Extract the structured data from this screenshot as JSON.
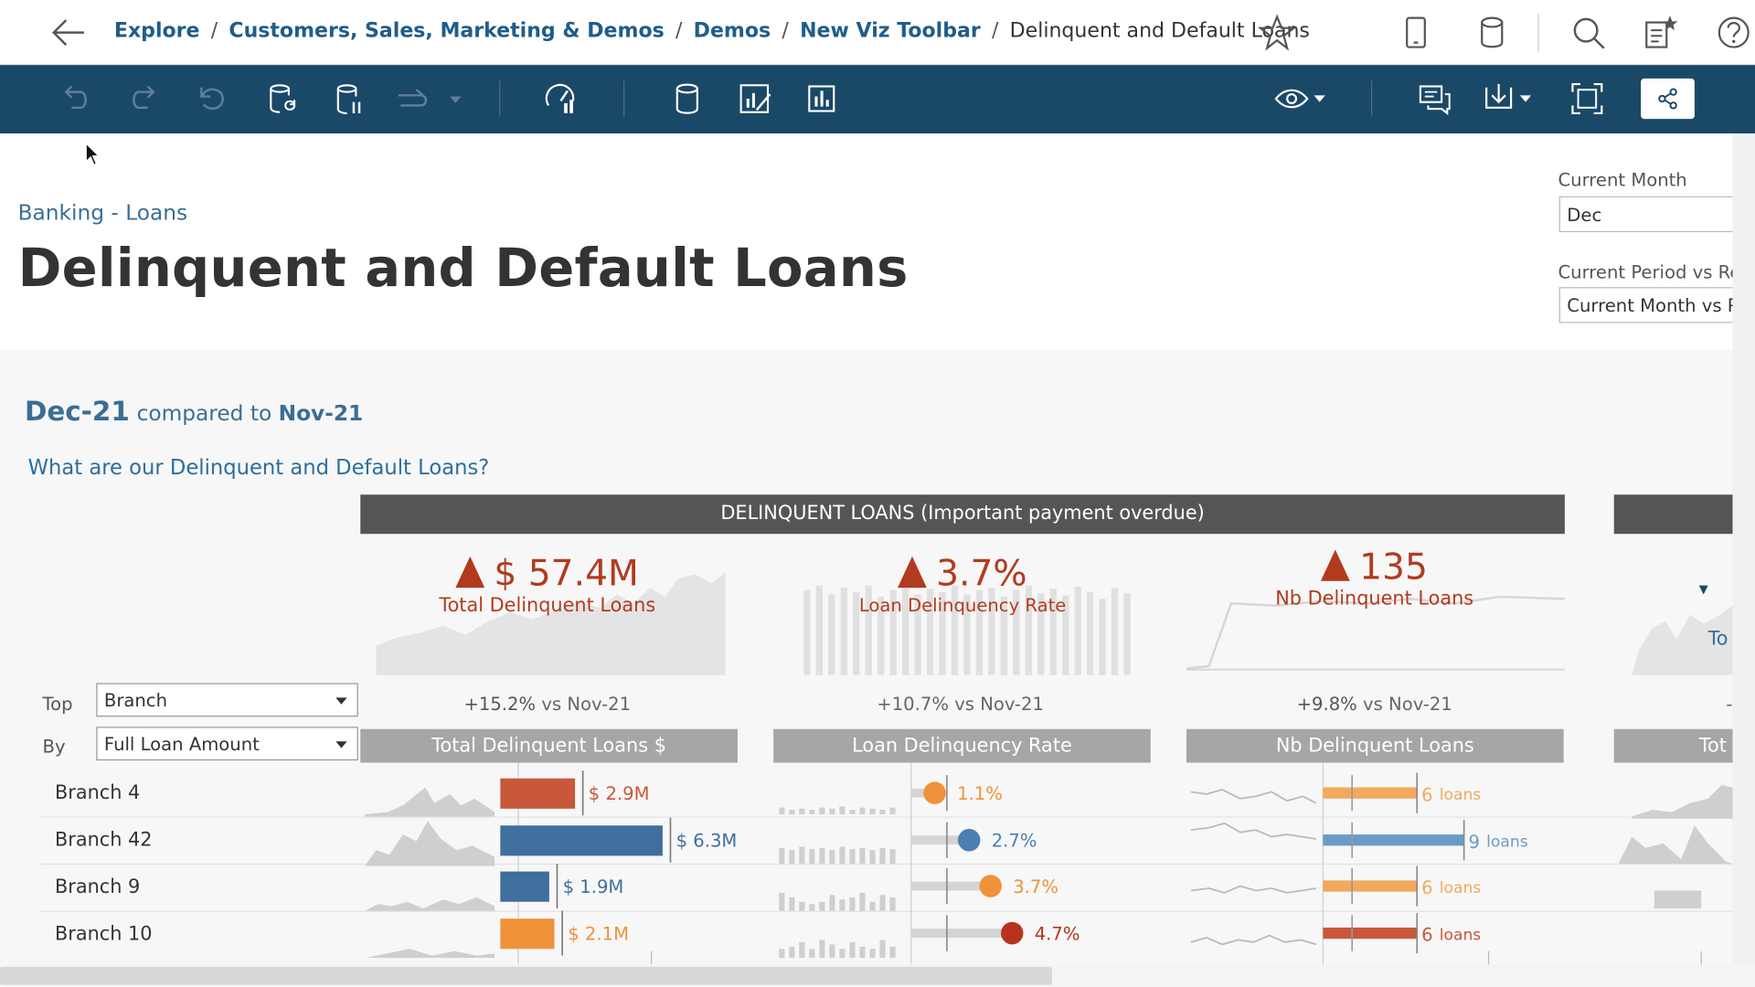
{
  "breadcrumb": {
    "items": [
      "Explore",
      "Customers, Sales, Marketing & Demos",
      "Demos",
      "New Viz Toolbar"
    ],
    "current": "Delinquent and Default Loans"
  },
  "dashboard": {
    "subtitle": "Banking - Loans",
    "title": "Delinquent and Default Loans"
  },
  "filters": {
    "current_month_label": "Current Month",
    "current_month_value": "Dec",
    "period_label": "Current Period vs Re",
    "period_value": "Current Month vs P"
  },
  "period": {
    "current": "Dec-21",
    "compared_text": "compared to",
    "previous": "Nov-21"
  },
  "question": "What are our Delinquent and Default Loans?",
  "section_header": "DELINQUENT LOANS (Important payment overdue)",
  "kpis": [
    {
      "value": "$ 57.4M",
      "label": "Total Delinquent Loans",
      "change": "+15.2%",
      "vs": "vs Nov-21"
    },
    {
      "value": "3.7%",
      "label": "Loan Delinquency Rate",
      "change": "+10.7%",
      "vs": "vs Nov-21"
    },
    {
      "value": "135",
      "label": "Nb Delinquent Loans",
      "change": "+9.8%",
      "vs": "vs Nov-21"
    }
  ],
  "partial_kpi": {
    "label": "To",
    "change": "-",
    "column": "Tot"
  },
  "selectors": {
    "top_label": "Top",
    "top_value": "Branch",
    "by_label": "By",
    "by_value": "Full Loan Amount"
  },
  "columns": [
    "Total Delinquent Loans $",
    "Loan Delinquency Rate",
    "Nb Delinquent Loans"
  ],
  "rows": [
    {
      "name": "Branch 4",
      "amount": "$ 2.9M",
      "amount_m": 2.9,
      "rate": "1.1%",
      "rate_v": 1.1,
      "count": "6",
      "count_v": 6,
      "color": "#c9573a"
    },
    {
      "name": "Branch 42",
      "amount": "$ 6.3M",
      "amount_m": 6.3,
      "rate": "2.7%",
      "rate_v": 2.7,
      "count": "9",
      "count_v": 9,
      "color": "#3f6f9c"
    },
    {
      "name": "Branch 9",
      "amount": "$ 1.9M",
      "amount_m": 1.9,
      "rate": "3.7%",
      "rate_v": 3.7,
      "count": "6",
      "count_v": 6,
      "color": "#3f6f9c"
    },
    {
      "name": "Branch 10",
      "amount": "$ 2.1M",
      "amount_m": 2.1,
      "rate": "4.7%",
      "rate_v": 4.7,
      "count": "6",
      "count_v": 6,
      "color": "#f0923a"
    }
  ],
  "rate_colors": [
    "#f0923a",
    "#4a7fb0",
    "#f0923a",
    "#b8331d"
  ],
  "count_colors": [
    "#f2a95c",
    "#6a9ac8",
    "#f2a95c",
    "#c9573a"
  ],
  "amount_colors": [
    "#c9573a",
    "#3f6f9c",
    "#3f6f9c",
    "#f0923a"
  ],
  "loans_unit": "loans",
  "icons": {
    "topbar": [
      "back-arrow-icon",
      "favorite-star-icon",
      "device-preview-icon",
      "data-source-icon",
      "search-icon",
      "edit-icon",
      "help-icon"
    ],
    "toolbar": [
      "undo-icon",
      "redo-icon",
      "revert-icon",
      "refresh-data-icon",
      "pause-updates-icon",
      "replay-animation-icon",
      "performance-icon",
      "data-icon",
      "ask-data-icon",
      "metrics-icon",
      "view-icon",
      "comments-icon",
      "download-icon",
      "fullscreen-icon",
      "share-icon"
    ]
  }
}
